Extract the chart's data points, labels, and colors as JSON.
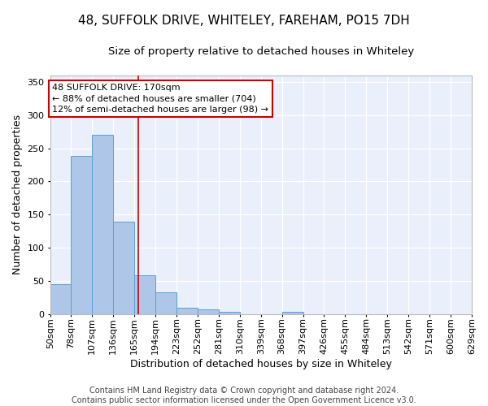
{
  "title": "48, SUFFOLK DRIVE, WHITELEY, FAREHAM, PO15 7DH",
  "subtitle": "Size of property relative to detached houses in Whiteley",
  "xlabel": "Distribution of detached houses by size in Whiteley",
  "ylabel": "Number of detached properties",
  "footer_line1": "Contains HM Land Registry data © Crown copyright and database right 2024.",
  "footer_line2": "Contains public sector information licensed under the Open Government Licence v3.0.",
  "annotation_line1": "48 SUFFOLK DRIVE: 170sqm",
  "annotation_line2": "← 88% of detached houses are smaller (704)",
  "annotation_line3": "12% of semi-detached houses are larger (98) →",
  "subject_size": 170,
  "bar_edges": [
    50,
    78,
    107,
    136,
    165,
    194,
    223,
    252,
    281,
    310,
    339,
    368,
    397,
    426,
    455,
    484,
    513,
    542,
    571,
    600,
    629
  ],
  "bar_heights": [
    45,
    238,
    270,
    140,
    59,
    33,
    10,
    7,
    4,
    0,
    0,
    4,
    0,
    0,
    0,
    0,
    0,
    0,
    0,
    0,
    3
  ],
  "bar_color": "#aec6e8",
  "bar_edge_color": "#5a9fd4",
  "vline_color": "#cc0000",
  "bg_color": "#eaf0fb",
  "annotation_box_color": "#cc0000",
  "ylim": [
    0,
    360
  ],
  "yticks": [
    0,
    50,
    100,
    150,
    200,
    250,
    300,
    350
  ],
  "title_fontsize": 11,
  "subtitle_fontsize": 9.5,
  "axis_label_fontsize": 9,
  "tick_fontsize": 8,
  "footer_fontsize": 7,
  "annotation_fontsize": 8
}
